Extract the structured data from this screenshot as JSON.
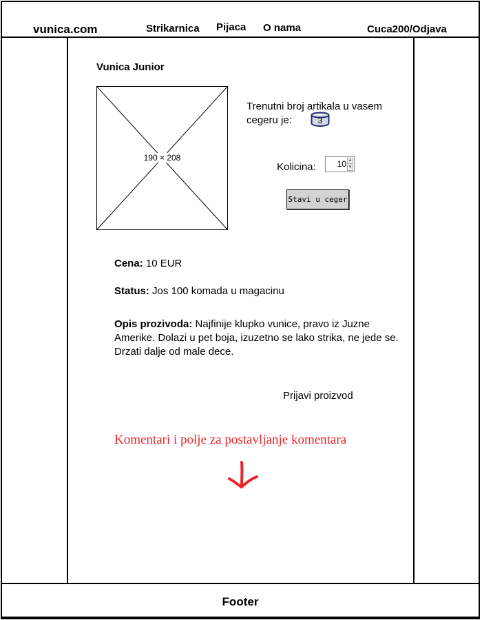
{
  "header": {
    "logo": "vunica.com",
    "nav": [
      "Strikarnica",
      "Pijaca",
      "O nama"
    ],
    "user_link": "Cuca200/Odjava"
  },
  "product": {
    "title": "Vunica Junior",
    "image_placeholder": "190 × 208",
    "price_label": "Cena:",
    "price_value": "10 EUR",
    "status_label": "Status:",
    "status_value": "Jos 100 komada u magacinu",
    "description_label": "Opis prozivoda:",
    "description_value": "Najfinije klupko vunice,  pravo iz Juzne Amerike. Dolazi u pet boja, izuzetno se lako strika, ne jede se. Drzati dalje od male dece."
  },
  "cart": {
    "text": "Trenutni broj artikala u vasem cegeru je:",
    "count": "3",
    "quantity_label": "Kolicina:",
    "quantity_value": "10",
    "add_button": "Stavi u ceger"
  },
  "report_link": "Prijavi proizvod",
  "comments_note": "Komentari i polje za postavljanje komentara",
  "footer": {
    "label": "Footer"
  },
  "colors": {
    "annotation": "#e8262a",
    "badge_fill": "#d6d9e8",
    "badge_stroke": "#1f2f6f",
    "button": "#d3d3d3"
  },
  "icons": {
    "arrow": "down-arrow-icon",
    "cart": "cart-count-badge"
  }
}
